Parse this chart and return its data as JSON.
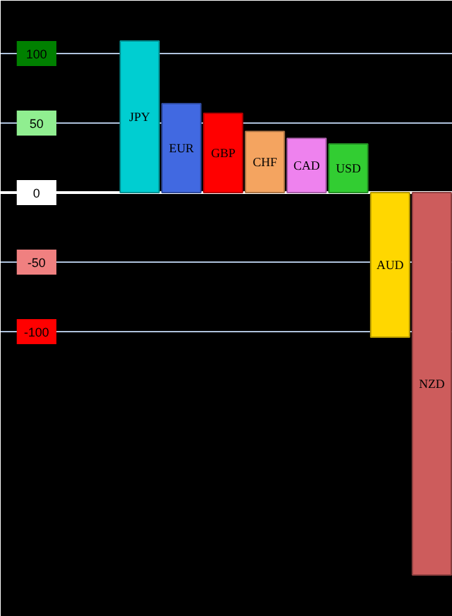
{
  "chart_data": {
    "type": "bar",
    "categories": [
      "JPY",
      "EUR",
      "GBP",
      "CHF",
      "CAD",
      "USD",
      "AUD",
      "NZD"
    ],
    "values": [
      109,
      64,
      57,
      44,
      39,
      35,
      -104,
      -275
    ],
    "colors": [
      "#00ced1",
      "#4169e1",
      "#ff0000",
      "#f4a460",
      "#ee82ee",
      "#32cd32",
      "#ffd700",
      "#cd5c5c"
    ],
    "ylim": [
      -305,
      138
    ],
    "yticks": [
      100,
      50,
      0,
      -50,
      -100
    ],
    "grid": "y"
  }
}
